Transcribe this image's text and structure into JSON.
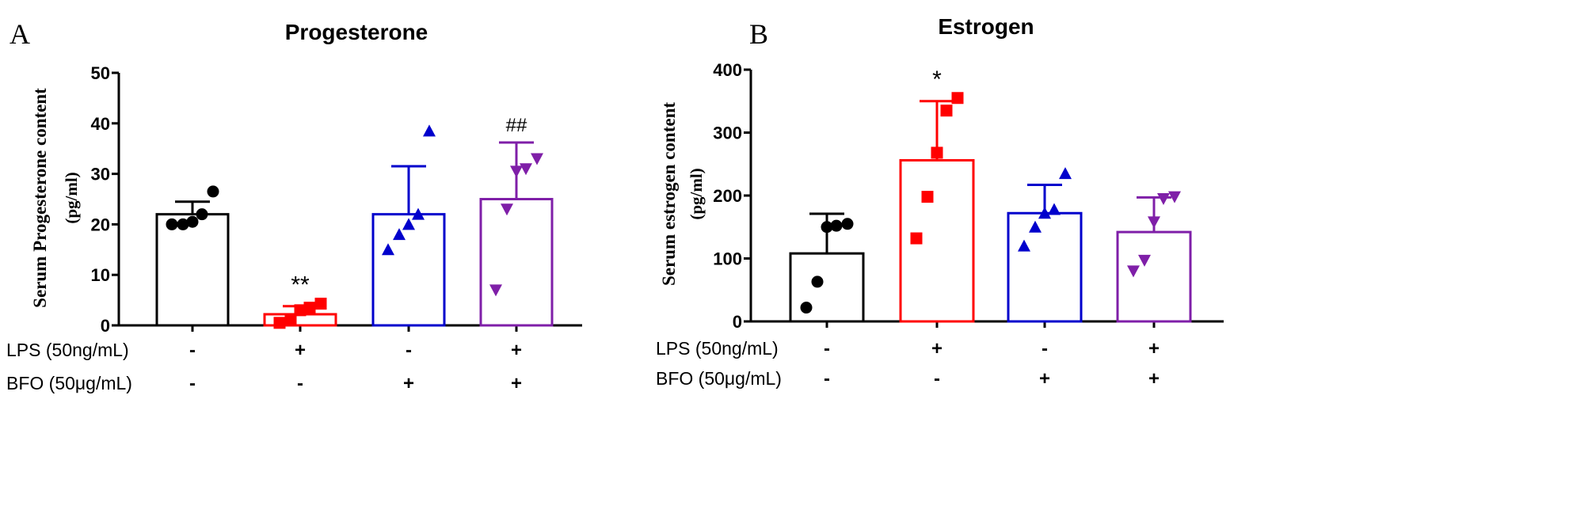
{
  "chart_data": [
    {
      "type": "bar",
      "panel_label": "A",
      "title": "Progesterone",
      "ylabel_line1": "Serum Progesterone content",
      "ylabel_line2": "(pg/ml)",
      "ylim": [
        0,
        50
      ],
      "yticks": [
        "0",
        "10",
        "20",
        "30",
        "40",
        "50"
      ],
      "yticks_values": [
        0,
        10,
        20,
        30,
        40,
        50
      ],
      "groups": [
        {
          "mean": 22,
          "sd": 2.5,
          "points": [
            20,
            20,
            20.5,
            22,
            26.5
          ],
          "color": "#000000",
          "marker": "circle",
          "annotation": ""
        },
        {
          "mean": 2.2,
          "sd": 1.6,
          "points": [
            0.5,
            1,
            3,
            3.5,
            4.3
          ],
          "color": "#ff0000",
          "marker": "square",
          "annotation": "**"
        },
        {
          "mean": 22,
          "sd": 9.5,
          "points": [
            15,
            18,
            20,
            22,
            38.5
          ],
          "color": "#0000cc",
          "marker": "triangle-up",
          "annotation": ""
        },
        {
          "mean": 25,
          "sd": 11.2,
          "points": [
            7,
            23,
            30.5,
            31,
            33
          ],
          "color": "#7f1fa8",
          "marker": "triangle-down",
          "annotation": "##"
        }
      ],
      "row_labels": [
        "LPS (50ng/mL)",
        "BFO (50μg/mL)"
      ],
      "lps_signs": [
        "-",
        "+",
        "-",
        "+"
      ],
      "bfo_signs": [
        "-",
        "-",
        "+",
        "+"
      ]
    },
    {
      "type": "bar",
      "panel_label": "B",
      "title": "Estrogen",
      "ylabel_line1": "Serum estrogen content",
      "ylabel_line2": "(pg/ml)",
      "ylim": [
        0,
        400
      ],
      "yticks": [
        "0",
        "100",
        "200",
        "300",
        "400"
      ],
      "yticks_values": [
        0,
        100,
        200,
        300,
        400
      ],
      "groups": [
        {
          "mean": 108,
          "sd": 63,
          "points": [
            22,
            63,
            150,
            152,
            155
          ],
          "color": "#000000",
          "marker": "circle",
          "annotation": ""
        },
        {
          "mean": 256,
          "sd": 94,
          "points": [
            132,
            198,
            268,
            335,
            355
          ],
          "color": "#ff0000",
          "marker": "square",
          "annotation": "*"
        },
        {
          "mean": 172,
          "sd": 45,
          "points": [
            120,
            150,
            172,
            178,
            235
          ],
          "color": "#0000cc",
          "marker": "triangle-up",
          "annotation": ""
        },
        {
          "mean": 142,
          "sd": 55,
          "points": [
            80,
            97,
            158,
            195,
            198
          ],
          "color": "#7f1fa8",
          "marker": "triangle-down",
          "annotation": ""
        }
      ],
      "row_labels": [
        "LPS (50ng/mL)",
        "BFO (50μg/mL)"
      ],
      "lps_signs": [
        "-",
        "+",
        "-",
        "+"
      ],
      "bfo_signs": [
        "-",
        "-",
        "+",
        "+"
      ]
    }
  ]
}
